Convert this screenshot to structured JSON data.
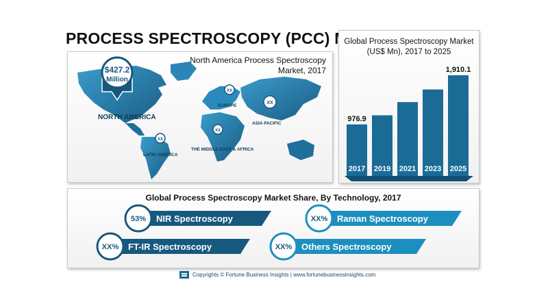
{
  "title": "PROCESS SPECTROSCOPY (PCC) MARKET",
  "map": {
    "title": "North America Process Spectroscopy Market, 2017",
    "highlight_value": "$427.2",
    "highlight_unit": "Million",
    "regions": [
      {
        "name": "NORTH AMERICA",
        "value": ""
      },
      {
        "name": "EUROPE",
        "value": "XX"
      },
      {
        "name": "ASIA PACIFIC",
        "value": "XX"
      },
      {
        "name": "THE MIDDLE EAST & AFRICA",
        "value": "XX"
      },
      {
        "name": "LATIN AMERICA",
        "value": "XX"
      }
    ]
  },
  "chart_data": {
    "type": "bar",
    "title": "Global Process Spectroscopy Market (US$ Mn), 2017 to 2025",
    "categories": [
      "2017",
      "2019",
      "2021",
      "2023",
      "2025"
    ],
    "values": [
      976.9,
      1150,
      1400,
      1640,
      1910.1
    ],
    "value_labels": [
      "976.9",
      "",
      "",
      "",
      "1,910.1"
    ],
    "ylim": [
      0,
      2000
    ],
    "colors": {
      "bar": "#1b6b97",
      "bar_base": "#124f73"
    }
  },
  "technology_share": {
    "title": "Global Process Spectroscopy Market Share, By Technology, 2017",
    "items": [
      {
        "label": "NIR Spectroscopy",
        "value": "53%",
        "color": "#17587e"
      },
      {
        "label": "Raman Spectroscopy",
        "value": "XX%",
        "color": "#1c8fbf"
      },
      {
        "label": "FT-IR Spectroscopy",
        "value": "XX%",
        "color": "#17587e"
      },
      {
        "label": "Others Spectroscopy",
        "value": "XX%",
        "color": "#1c8fbf"
      }
    ]
  },
  "footer": {
    "text": "Copyrights © Fortune Business Insights | www.fortunebusinessinsights.com"
  }
}
